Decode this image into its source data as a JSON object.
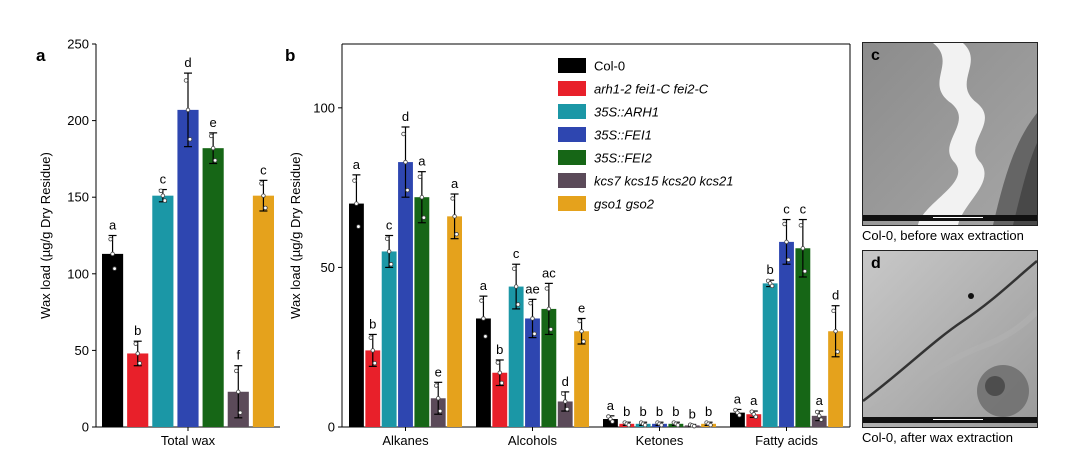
{
  "panels": {
    "a": {
      "letter": "a"
    },
    "b": {
      "letter": "b"
    },
    "c": {
      "letter": "c",
      "caption": "Col-0, before wax extraction"
    },
    "d": {
      "letter": "d",
      "caption": "Col-0, after wax extraction"
    }
  },
  "series_colors": [
    "#000000",
    "#e8202a",
    "#1b97a6",
    "#2e46b0",
    "#166616",
    "#5b4a59",
    "#e5a21c"
  ],
  "chart_data": [
    {
      "id": "a",
      "type": "bar",
      "title": "",
      "xlabel": "",
      "ylabel": "Wax load  (µg/g Dry Residue)",
      "ylim": [
        0,
        250
      ],
      "yticks": [
        0,
        50,
        100,
        150,
        200,
        250
      ],
      "categories": [
        "Total wax"
      ],
      "series": [
        {
          "name": "Col-0",
          "values": [
            113
          ],
          "errors": [
            12
          ],
          "letters": [
            "a"
          ]
        },
        {
          "name": "arh1-2 fei1-C fei2-C",
          "values": [
            48
          ],
          "errors": [
            8
          ],
          "letters": [
            "b"
          ]
        },
        {
          "name": "35S::ARH1",
          "values": [
            151
          ],
          "errors": [
            4
          ],
          "letters": [
            "c"
          ]
        },
        {
          "name": "35S::FEI1",
          "values": [
            207
          ],
          "errors": [
            24
          ],
          "letters": [
            "d"
          ]
        },
        {
          "name": "35S::FEI2",
          "values": [
            182
          ],
          "errors": [
            10
          ],
          "letters": [
            "e"
          ]
        },
        {
          "name": "kcs7 kcs15 kcs20 kcs21",
          "values": [
            23
          ],
          "errors": [
            17
          ],
          "letters": [
            "f"
          ]
        },
        {
          "name": "gso1 gso2",
          "values": [
            151
          ],
          "errors": [
            10
          ],
          "letters": [
            "c"
          ]
        }
      ],
      "grid": false
    },
    {
      "id": "b",
      "type": "bar",
      "title": "",
      "xlabel": "",
      "ylabel": "Wax load  (µg/g Dry Residue)",
      "ylim": [
        0,
        120
      ],
      "yticks": [
        0,
        50,
        100
      ],
      "categories": [
        "Alkanes",
        "Alcohols",
        "Ketones",
        "Fatty acids"
      ],
      "series": [
        {
          "name": "Col-0",
          "values": [
            70,
            34,
            2.5,
            4.5
          ],
          "errors": [
            9,
            7,
            1,
            1
          ],
          "letters": [
            "a",
            "a",
            "a",
            "a"
          ]
        },
        {
          "name": "arh1-2 fei1-C fei2-C",
          "values": [
            24,
            17,
            1,
            4
          ],
          "errors": [
            5,
            4,
            0.5,
            1
          ],
          "letters": [
            "b",
            "b",
            "b",
            "a"
          ]
        },
        {
          "name": "35S::ARH1",
          "values": [
            55,
            44,
            1,
            45
          ],
          "errors": [
            5,
            7,
            0.5,
            1
          ],
          "letters": [
            "c",
            "c",
            "b",
            "b"
          ]
        },
        {
          "name": "35S::FEI1",
          "values": [
            83,
            34,
            1,
            58
          ],
          "errors": [
            11,
            6,
            0.5,
            7
          ],
          "letters": [
            "d",
            "ae",
            "b",
            "c"
          ]
        },
        {
          "name": "35S::FEI2",
          "values": [
            72,
            37,
            1,
            56
          ],
          "errors": [
            8,
            8,
            0.5,
            9
          ],
          "letters": [
            "a",
            "ac",
            "b",
            "c"
          ]
        },
        {
          "name": "kcs7 kcs15 kcs20 kcs21",
          "values": [
            9,
            8,
            0.5,
            3.5
          ],
          "errors": [
            5,
            3,
            0.3,
            1.5
          ],
          "letters": [
            "e",
            "d",
            "b",
            "a"
          ]
        },
        {
          "name": "gso1 gso2",
          "values": [
            66,
            30,
            1,
            30
          ],
          "errors": [
            7,
            4,
            0.5,
            8
          ],
          "letters": [
            "a",
            "e",
            "b",
            "d"
          ]
        }
      ],
      "legend": "top-right",
      "grid": false
    }
  ]
}
